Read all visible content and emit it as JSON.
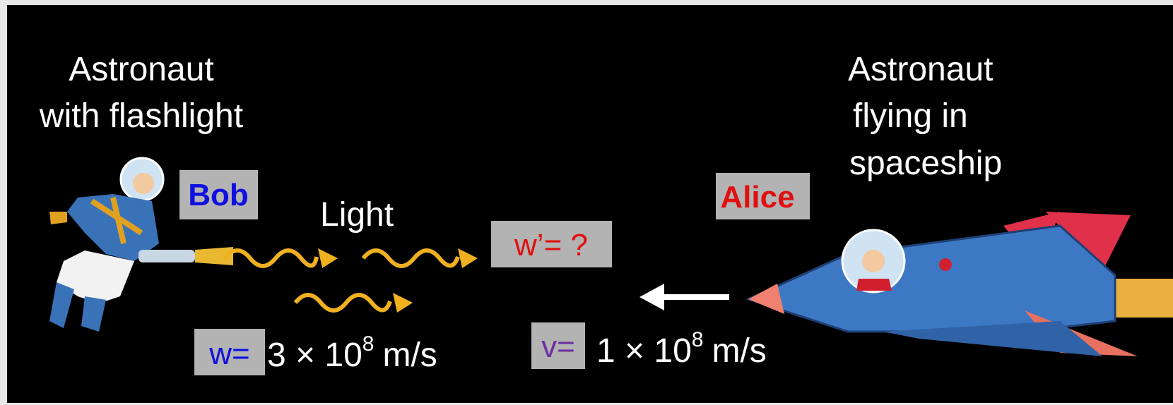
{
  "left_caption": [
    "Astronaut",
    "with flashlight"
  ],
  "right_caption": [
    "Astronaut",
    "flying in",
    "spaceship"
  ],
  "observers": {
    "bob": "Bob",
    "alice": "Alice"
  },
  "light_label": "Light",
  "unknown_speed": "w’= ?",
  "light_speed": {
    "symbol": "w=",
    "mantissa": "3 × 10",
    "exponent": "8",
    "unit": "m/s"
  },
  "ship_speed": {
    "symbol": "v=",
    "mantissa": "1 × 10",
    "exponent": "8",
    "unit": "m/s"
  }
}
